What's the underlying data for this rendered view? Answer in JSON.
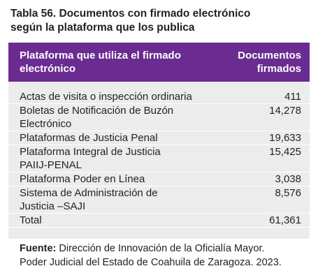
{
  "title": {
    "line1": "Tabla 56. Documentos con firmado electrónico",
    "line2": "según la plataforma que los publica"
  },
  "table": {
    "headers": {
      "platform": [
        "Plataforma que utiliza el firmado",
        "electrónico"
      ],
      "documents": [
        "Documentos",
        "firmados"
      ]
    },
    "rows": [
      {
        "label": [
          "Actas de visita o inspección ordinaria"
        ],
        "value": "411"
      },
      {
        "label": [
          "Boletas de Notificación de Buzón",
          "Electrónico"
        ],
        "value": "14,278"
      },
      {
        "label": [
          "Plataformas de Justicia Penal"
        ],
        "value": "19,633"
      },
      {
        "label": [
          "Plataforma Integral de Justicia",
          "PAIIJ-PENAL"
        ],
        "value": "15,425"
      },
      {
        "label": [
          "Plataforma Poder en Línea"
        ],
        "value": "3,038"
      },
      {
        "label": [
          "Sistema de Administración de",
          "Justicia –SAJI"
        ],
        "value": "8,576"
      },
      {
        "label": [
          "Total"
        ],
        "value": "61,361"
      }
    ]
  },
  "source": {
    "label": "Fuente:",
    "line1": " Dirección de Innovación de la Oficialía Mayor.",
    "line2": "Poder Judicial del Estado de Coahuila de Zaragoza. 2023."
  }
}
